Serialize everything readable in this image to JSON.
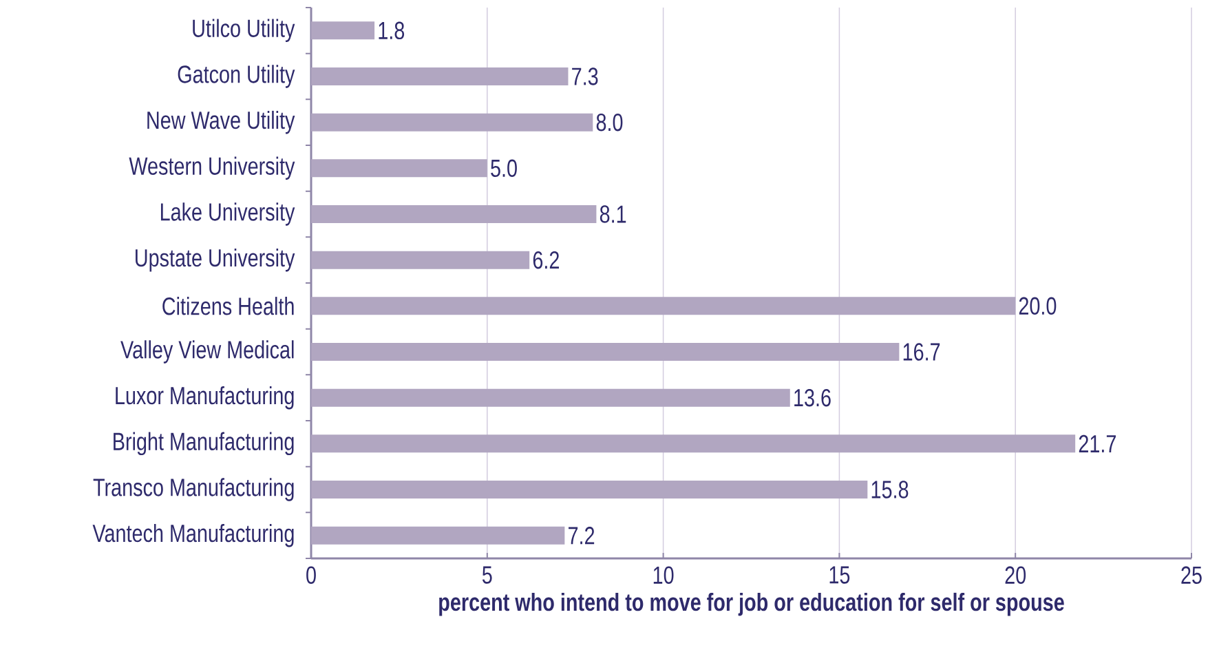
{
  "chart_data": {
    "type": "bar",
    "orientation": "horizontal",
    "xlabel": "percent who intend to move for job or education for self or spouse",
    "categories": [
      "Utilco Utility",
      "Gatcon Utility",
      "New Wave Utility",
      "Western University",
      "Lake University",
      "Upstate University",
      "Citizens Health",
      "Valley View Medical",
      "Luxor Manufacturing",
      "Bright Manufacturing",
      "Transco Manufacturing",
      "Vantech Manufacturing"
    ],
    "values": [
      1.8,
      7.3,
      8.0,
      5.0,
      8.1,
      6.2,
      20.0,
      16.7,
      13.6,
      21.7,
      15.8,
      7.2
    ],
    "value_labels": [
      "1.8",
      "7.3",
      "8.0",
      "5.0",
      "8.1",
      "6.2",
      "20.0",
      "16.7",
      "13.6",
      "21.7",
      "15.8",
      "7.2"
    ],
    "color": "#b1a6c1",
    "xlim": [
      0,
      25
    ],
    "xticks": [
      0,
      5,
      10,
      15,
      20,
      25
    ],
    "grid": "x"
  }
}
